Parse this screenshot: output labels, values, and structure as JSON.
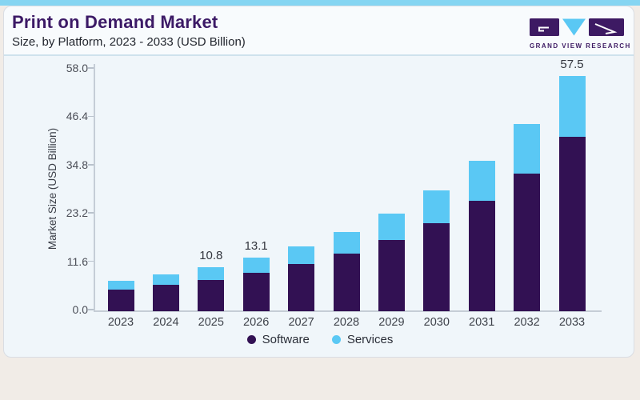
{
  "header": {
    "title": "Print on Demand Market",
    "subtitle": "Size, by Platform, 2023 - 2033 (USD Billion)"
  },
  "brand": {
    "name": "GRAND VIEW RESEARCH"
  },
  "colors": {
    "software_bar": "#321153",
    "services_bar": "#5ac8f4",
    "title_purple": "#3c1a66",
    "logo_purple": "#3d1a63",
    "logo_blue": "#5ac8f4",
    "top_strip_blue": "#85d5f2",
    "card_background": "#f0f6fa",
    "outer_background": "#f1ece7"
  },
  "chart_data": {
    "type": "bar",
    "stacked": true,
    "title": "Print on Demand Market Size, by Platform, 2023 - 2033 (USD Billion)",
    "categories": [
      "2023",
      "2024",
      "2025",
      "2026",
      "2027",
      "2028",
      "2029",
      "2030",
      "2031",
      "2032",
      "2033"
    ],
    "series": [
      {
        "name": "Software",
        "color": "#321153",
        "values": [
          5.3,
          6.5,
          7.7,
          9.4,
          11.6,
          14.1,
          17.4,
          21.5,
          26.9,
          33.6,
          42.5
        ]
      },
      {
        "name": "Services",
        "color": "#5ac8f4",
        "values": [
          2.1,
          2.4,
          3.1,
          3.7,
          4.2,
          5.3,
          6.4,
          8.0,
          9.8,
          12.2,
          15.0
        ]
      }
    ],
    "totals": [
      7.4,
      8.9,
      10.8,
      13.1,
      15.8,
      19.4,
      23.8,
      29.5,
      36.7,
      45.8,
      57.5
    ],
    "bar_value_labels": [
      "",
      "",
      "10.8",
      "13.1",
      "",
      "",
      "",
      "",
      "",
      "",
      "57.5"
    ],
    "xlabel": "",
    "ylabel": "Market Size (USD Billion)",
    "ylim": [
      0,
      58
    ],
    "yticks": [
      0.0,
      11.6,
      23.2,
      34.8,
      46.4,
      58.0
    ],
    "ytick_labels": [
      "0.0",
      "11.6",
      "23.2",
      "34.8",
      "46.4",
      "58.0"
    ],
    "grid": false,
    "legend": [
      "Software",
      "Services"
    ],
    "legend_position": "bottom"
  }
}
